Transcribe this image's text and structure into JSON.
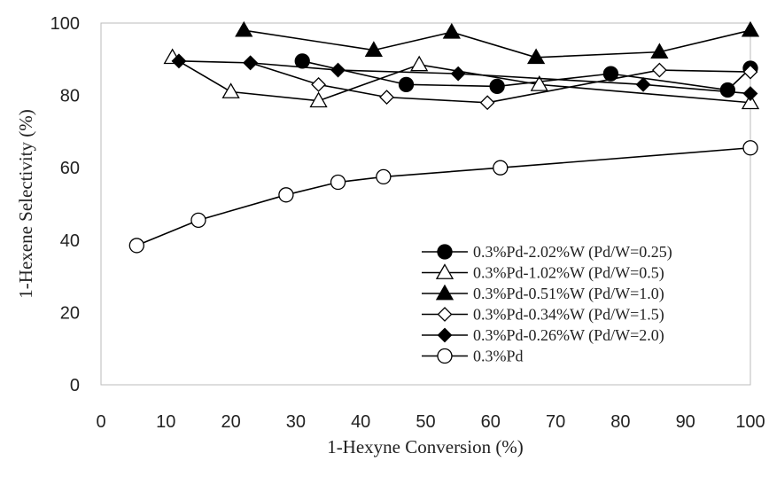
{
  "chart_data": {
    "type": "line",
    "xlabel": "1-Hexyne Conversion (%)",
    "ylabel": "1-Hexene Selectivity (%)",
    "xlim": [
      0,
      100
    ],
    "ylim": [
      0,
      100
    ],
    "x_ticks": [
      "0",
      "10",
      "20",
      "30",
      "40",
      "50",
      "60",
      "70",
      "80",
      "90",
      "100"
    ],
    "y_ticks": [
      "0",
      "20",
      "40",
      "60",
      "80",
      "100"
    ],
    "grid": false,
    "legend_position": "bottom-right",
    "series": [
      {
        "name": "0.3%Pd-2.02%W (Pd/W=0.25)",
        "marker": "circle-filled",
        "color": "#000000",
        "points": [
          [
            31,
            89.5
          ],
          [
            47,
            83
          ],
          [
            61,
            82.5
          ],
          [
            78.5,
            86
          ],
          [
            96.5,
            81.5
          ],
          [
            100,
            87.5
          ]
        ]
      },
      {
        "name": "0.3%Pd-1.02%W (Pd/W=0.5)",
        "marker": "triangle-open",
        "color": "#000000",
        "points": [
          [
            11,
            90.5
          ],
          [
            20,
            81
          ],
          [
            33.5,
            78.5
          ],
          [
            49,
            88.5
          ],
          [
            67.5,
            83
          ],
          [
            100,
            78
          ]
        ]
      },
      {
        "name": "0.3%Pd-0.51%W (Pd/W=1.0)",
        "marker": "triangle-filled",
        "color": "#000000",
        "points": [
          [
            22,
            98
          ],
          [
            42,
            92.5
          ],
          [
            54,
            97.5
          ],
          [
            67,
            90.5
          ],
          [
            86,
            92
          ],
          [
            100,
            98
          ]
        ]
      },
      {
        "name": "0.3%Pd-0.34%W (Pd/W=1.5)",
        "marker": "diamond-open",
        "color": "#000000",
        "points": [
          [
            23,
            89
          ],
          [
            33.5,
            83
          ],
          [
            44,
            79.5
          ],
          [
            59.5,
            78
          ],
          [
            86,
            87
          ],
          [
            100,
            86.5
          ]
        ]
      },
      {
        "name": "0.3%Pd-0.26%W (Pd/W=2.0)",
        "marker": "diamond-filled",
        "color": "#000000",
        "points": [
          [
            12,
            89.5
          ],
          [
            23,
            89
          ],
          [
            36.5,
            87
          ],
          [
            55,
            86
          ],
          [
            83.5,
            83
          ],
          [
            100,
            80.5
          ]
        ]
      },
      {
        "name": "0.3%Pd",
        "marker": "circle-open",
        "color": "#000000",
        "points": [
          [
            5.5,
            38.5
          ],
          [
            15,
            45.5
          ],
          [
            28.5,
            52.5
          ],
          [
            36.5,
            56
          ],
          [
            43.5,
            57.5
          ],
          [
            61.5,
            60
          ],
          [
            100,
            65.5
          ]
        ]
      }
    ]
  }
}
